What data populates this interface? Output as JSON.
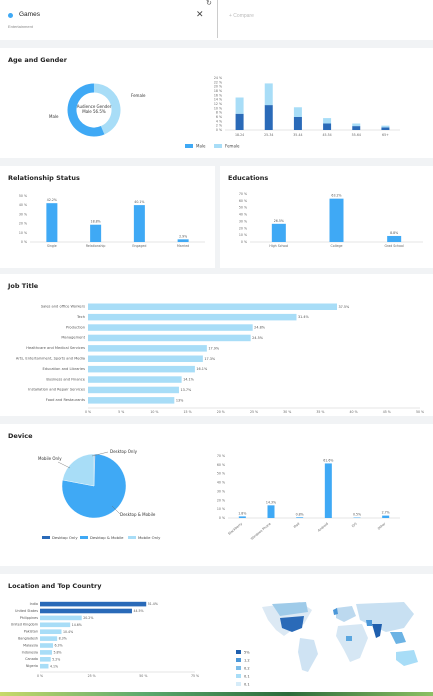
{
  "header": {
    "segment_name": "Games",
    "segment_category": "Entertainment",
    "compare_label": "+ Compare",
    "close_icon": "close-icon",
    "refresh_icon": "refresh-icon",
    "segment_color": "#3fa9f5"
  },
  "colors": {
    "primary": "#3fa9f5",
    "secondary": "#a8ddf7",
    "dark": "#2a6ab8"
  },
  "age_gender": {
    "title": "Age and Gender",
    "donut": {
      "center_line1": "Audience Gender",
      "center_line2": "Male 56.5%",
      "label_female": "Female",
      "label_male": "Male",
      "male_share": 0.565
    },
    "bars": {
      "type": "bar",
      "categories": [
        "18-24",
        "25-34",
        "35-44",
        "45-54",
        "55-64",
        "65+"
      ],
      "series": [
        {
          "name": "Male",
          "values": [
            7.5,
            11.5,
            6,
            3,
            1.8,
            1.2
          ]
        },
        {
          "name": "Female",
          "values": [
            7.5,
            10,
            4.5,
            2.5,
            1.2,
            0.8
          ]
        }
      ],
      "yticks": [
        "0 %",
        "2 %",
        "4 %",
        "6 %",
        "8 %",
        "10 %",
        "12 %",
        "14 %",
        "16 %",
        "18 %",
        "20 %",
        "22 %",
        "24 %"
      ],
      "ylim": [
        0,
        24
      ]
    },
    "legend": [
      "Male",
      "Female"
    ]
  },
  "relationship": {
    "title": "Relationship Status",
    "chart_data": {
      "type": "bar",
      "categories": [
        "Single",
        "Relationship",
        "Engaged",
        "Married"
      ],
      "values": [
        42.2,
        18.8,
        40.1,
        2.9
      ],
      "labels": [
        "42.2%",
        "18.8%",
        "40.1%",
        "2.9%"
      ],
      "yticks": [
        "0 %",
        "10 %",
        "20 %",
        "30 %",
        "40 %",
        "50 %"
      ],
      "ylim": [
        0,
        50
      ]
    }
  },
  "education": {
    "title": "Educations",
    "chart_data": {
      "type": "bar",
      "categories": [
        "High School",
        "College",
        "Grad School"
      ],
      "values": [
        26.5,
        63.2,
        8.8
      ],
      "labels": [
        "26.5%",
        "63.2%",
        "8.8%"
      ],
      "yticks": [
        "0 %",
        "10 %",
        "20 %",
        "30 %",
        "40 %",
        "50 %",
        "60 %",
        "70 %"
      ],
      "ylim": [
        0,
        70
      ]
    }
  },
  "job": {
    "title": "Job Title",
    "chart_data": {
      "type": "bar",
      "categories": [
        "Sales and office Workers",
        "Tech",
        "Production",
        "Management",
        "Healthcare and Medical Services",
        "Arts, Entertainment, Sports and Media",
        "Education and Libraries",
        "Business and Finance",
        "Installation and Repair Services",
        "Food and Restaurants"
      ],
      "values": [
        37.5,
        31.4,
        24.8,
        24.5,
        17.9,
        17.3,
        16.1,
        14.1,
        13.7,
        13
      ],
      "labels": [
        "37.5%",
        "31.4%",
        "24.8%",
        "24.5%",
        "17.9%",
        "17.3%",
        "16.1%",
        "14.1%",
        "13.7%",
        "13%"
      ],
      "xticks": [
        "0 %",
        "5 %",
        "10 %",
        "15 %",
        "20 %",
        "25 %",
        "30 %",
        "35 %",
        "40 %",
        "45 %",
        "50 %"
      ],
      "xlim": [
        0,
        50
      ]
    }
  },
  "device": {
    "title": "Device",
    "pie": {
      "type": "pie",
      "slices": [
        {
          "name": "Desktop Only",
          "value": 0.5
        },
        {
          "name": "Desktop & Mobile",
          "value": 77.5
        },
        {
          "name": "Mobile Only",
          "value": 22
        }
      ],
      "label_desktop": "Desktop Only",
      "label_mobile": "Mobile Only",
      "label_both": "Desktop & Mobile"
    },
    "legend": [
      "Desktop Only",
      "Desktop & Mobile",
      "Mobile Only"
    ],
    "os_chart": {
      "type": "bar",
      "categories": [
        "Blackberry",
        "Windows Phone",
        "iPad",
        "Android",
        "iOS",
        "Other"
      ],
      "values": [
        1.8,
        14.3,
        0.8,
        61.6,
        0.5,
        2.7
      ],
      "labels": [
        "1.8%",
        "14.3%",
        "0.8%",
        "61.6%",
        "0.5%",
        "2.7%"
      ],
      "yticks": [
        "0 %",
        "10 %",
        "20 %",
        "30 %",
        "40 %",
        "50 %",
        "60 %",
        "70 %"
      ],
      "ylim": [
        0,
        70
      ]
    }
  },
  "location": {
    "title": "Location and Top Country",
    "chart_data": {
      "type": "bar",
      "categories": [
        "India",
        "United States",
        "Philippines",
        "United Kingdom",
        "Pakistan",
        "Bangladesh",
        "Malaysia",
        "Indonesia",
        "Canada",
        "Nigeria"
      ],
      "values": [
        51.4,
        44.5,
        20.2,
        14.6,
        10.4,
        8.3,
        6.3,
        5.8,
        5.2,
        4.1
      ],
      "labels": [
        "51.4%",
        "44.5%",
        "20.2%",
        "14.6%",
        "10.4%",
        "8.3%",
        "6.3%",
        "5.8%",
        "5.2%",
        "4.1%"
      ],
      "xticks": [
        "0 %",
        "25 %",
        "50 %",
        "75 %"
      ],
      "xlim": [
        0,
        75
      ]
    },
    "map_legend": [
      "5%",
      "1.2",
      "0.2",
      "0.1",
      "0.1"
    ]
  }
}
